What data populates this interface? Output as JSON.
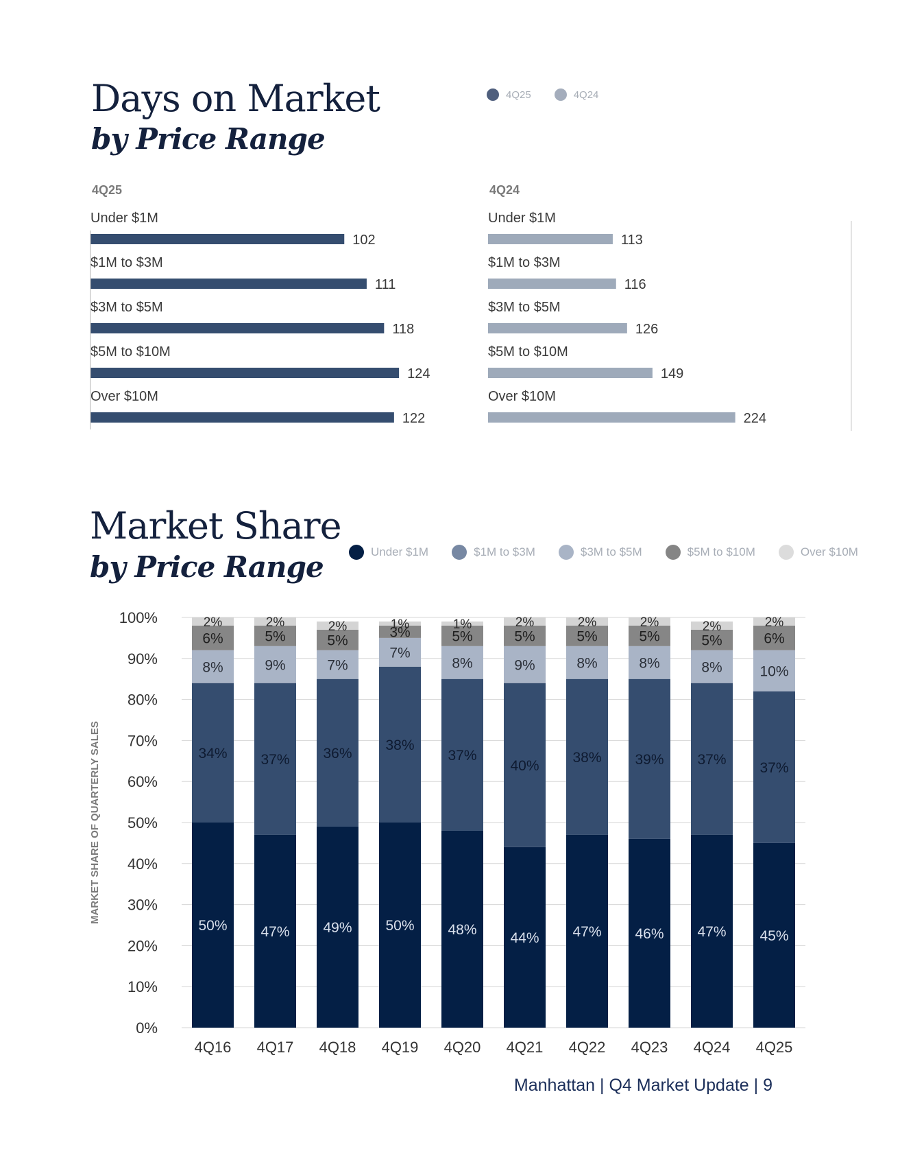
{
  "days_on_market": {
    "title": "Days on Market",
    "subtitle": "by Price Range",
    "legend": [
      {
        "label": "4Q25",
        "color": "#4f5f7d"
      },
      {
        "label": "4Q24",
        "color": "#a4adbc"
      }
    ]
  },
  "market_share": {
    "title": "Market Share",
    "subtitle": "by Price Range",
    "legend": [
      {
        "label": "Under $1M",
        "color": "#041f45"
      },
      {
        "label": "$1M to $3M",
        "color": "#7788a3"
      },
      {
        "label": "$3M to $5M",
        "color": "#a9b4c6"
      },
      {
        "label": "$5M to $10M",
        "color": "#858585"
      },
      {
        "label": "Over $10M",
        "color": "#dcdcdc"
      }
    ]
  },
  "footer": {
    "text": "Manhattan  |  Q4 Market Update  |  9"
  },
  "chart_data": [
    {
      "type": "bar",
      "orientation": "horizontal",
      "title": "4Q25",
      "categories": [
        "Under $1M",
        "$1M to $3M",
        "$3M to $5M",
        "$5M to $10M",
        "Over $10M"
      ],
      "values": [
        102,
        111,
        118,
        124,
        122
      ],
      "color": "#354d6f"
    },
    {
      "type": "bar",
      "orientation": "horizontal",
      "title": "4Q24",
      "categories": [
        "Under $1M",
        "$1M to $3M",
        "$3M to $5M",
        "$5M to $10M",
        "Over $10M"
      ],
      "values": [
        113,
        116,
        126,
        149,
        224
      ],
      "color": "#9eaaba"
    },
    {
      "type": "bar",
      "stacked": true,
      "categories": [
        "4Q16",
        "4Q17",
        "4Q18",
        "4Q19",
        "4Q20",
        "4Q21",
        "4Q22",
        "4Q23",
        "4Q24",
        "4Q25"
      ],
      "ylabel": "MARKET SHARE OF QUARTERLY SALES",
      "ylim": [
        0,
        100
      ],
      "yticks": [
        "0%",
        "10%",
        "20%",
        "30%",
        "40%",
        "50%",
        "60%",
        "70%",
        "80%",
        "90%",
        "100%"
      ],
      "series": [
        {
          "name": "Under $1M",
          "color": "#041f45",
          "label_color": "#d9e0ec",
          "values": [
            50,
            47,
            49,
            50,
            48,
            44,
            47,
            46,
            47,
            45
          ],
          "labels": [
            "50%",
            "47%",
            "49%",
            "50%",
            "48%",
            "44%",
            "47%",
            "46%",
            "47%",
            "45%"
          ]
        },
        {
          "name": "$1M to $3M",
          "color": "#354d6f",
          "label_color": "#0e1a30",
          "values": [
            34,
            37,
            36,
            38,
            37,
            40,
            38,
            39,
            37,
            37
          ],
          "labels": [
            "34%",
            "37%",
            "36%",
            "38%",
            "37%",
            "40%",
            "38%",
            "39%",
            "37%",
            "37%"
          ]
        },
        {
          "name": "$3M to $5M",
          "color": "#a9b4c6",
          "label_color": "#2a2f38",
          "values": [
            8,
            9,
            7,
            7,
            8,
            9,
            8,
            8,
            8,
            10
          ],
          "labels": [
            "8%",
            "9%",
            "7%",
            "7%",
            "8%",
            "9%",
            "8%",
            "8%",
            "8%",
            "10%"
          ]
        },
        {
          "name": "$5M to $10M",
          "color": "#868686",
          "label_color": "#1f1f1f",
          "values": [
            6,
            5,
            5,
            3,
            5,
            5,
            5,
            5,
            5,
            6
          ],
          "labels": [
            "6%",
            "5%",
            "5%",
            "3%",
            "5%",
            "5%",
            "5%",
            "5%",
            "5%",
            "6%"
          ]
        },
        {
          "name": "Over $10M",
          "color": "#d4d4d4",
          "label_color": "#2b2b2b",
          "values": [
            2,
            2,
            2,
            1,
            1,
            2,
            2,
            2,
            2,
            2
          ],
          "labels": [
            "2%",
            "2%",
            "2%",
            "1%",
            "1%",
            "2%",
            "2%",
            "2%",
            "2%",
            "2%"
          ]
        }
      ]
    }
  ]
}
